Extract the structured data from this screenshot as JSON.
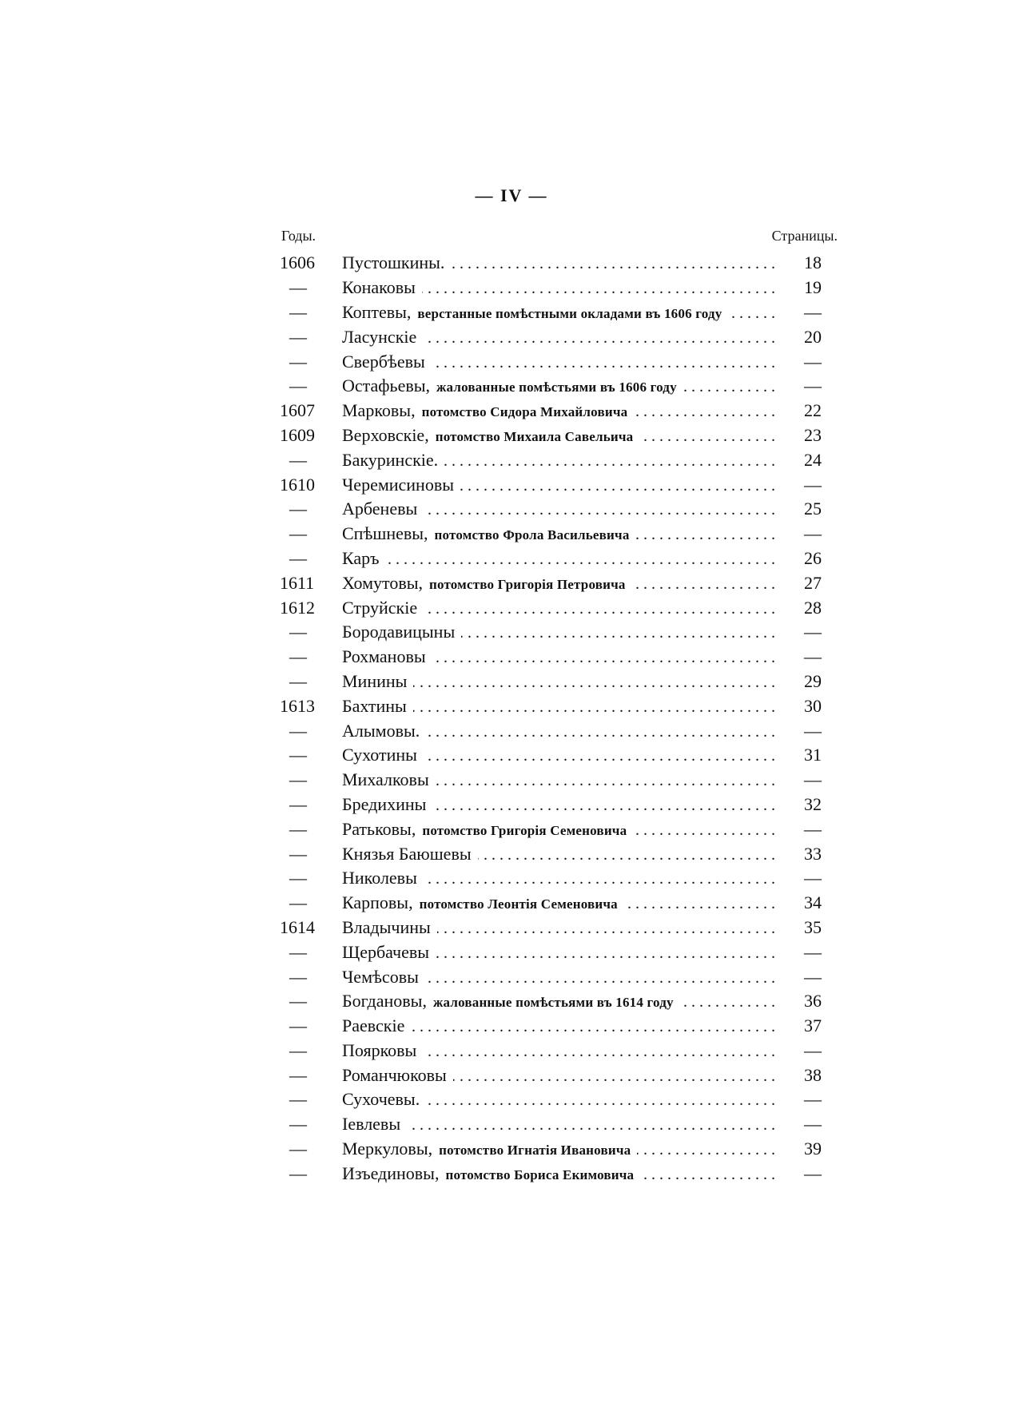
{
  "page_number": "— IV —",
  "headers": {
    "years": "Годы.",
    "pages": "Страницы."
  },
  "entries": [
    {
      "year": "1606",
      "name": "Пустошкины.",
      "desc": "",
      "page": "18"
    },
    {
      "year": "—",
      "name": "Конаковы",
      "desc": "",
      "page": "19"
    },
    {
      "year": "—",
      "name": "Коптевы,",
      "desc": "верстанные помѣстными окладами въ 1606 году",
      "page": "—"
    },
    {
      "year": "—",
      "name": "Ласунскіе",
      "desc": "",
      "page": "20"
    },
    {
      "year": "—",
      "name": "Свербѣевы",
      "desc": "",
      "page": "—"
    },
    {
      "year": "—",
      "name": "Остафьевы,",
      "desc": "жалованные помѣстьями въ 1606 году",
      "page": "—"
    },
    {
      "year": "1607",
      "name": "Марковы,",
      "desc": "потомство Сидора Михайловича",
      "page": "22"
    },
    {
      "year": "1609",
      "name": "Верховскіе,",
      "desc": "потомство Михаила Савельича",
      "page": "23"
    },
    {
      "year": "—",
      "name": "Бакуринскіе.",
      "desc": "",
      "page": "24"
    },
    {
      "year": "1610",
      "name": "Черемисиновы",
      "desc": "",
      "page": "—"
    },
    {
      "year": "—",
      "name": "Арбеневы",
      "desc": "",
      "page": "25"
    },
    {
      "year": "—",
      "name": "Спѣшневы,",
      "desc": "потомство Фрола Васильевича",
      "page": "—"
    },
    {
      "year": "—",
      "name": "Каръ",
      "desc": "",
      "page": "26"
    },
    {
      "year": "1611",
      "name": "Хомутовы,",
      "desc": "потомство Григорія Петровича",
      "page": "27"
    },
    {
      "year": "1612",
      "name": "Струйскіе",
      "desc": "",
      "page": "28"
    },
    {
      "year": "—",
      "name": "Бородавицыны",
      "desc": "",
      "page": "—"
    },
    {
      "year": "—",
      "name": "Рохмановы",
      "desc": "",
      "page": "—"
    },
    {
      "year": "—",
      "name": "Минины",
      "desc": "",
      "page": "29"
    },
    {
      "year": "1613",
      "name": "Бахтины",
      "desc": "",
      "page": "30"
    },
    {
      "year": "—",
      "name": "Алымовы.",
      "desc": "",
      "page": "—"
    },
    {
      "year": "—",
      "name": "Сухотины",
      "desc": "",
      "page": "31"
    },
    {
      "year": "—",
      "name": "Михалковы",
      "desc": "",
      "page": "—"
    },
    {
      "year": "—",
      "name": "Бредихины",
      "desc": "",
      "page": "32"
    },
    {
      "year": "—",
      "name": "Ратьковы,",
      "desc": "потомство Григорія Семеновича",
      "page": "—"
    },
    {
      "year": "—",
      "name": "Князья Баюшевы",
      "desc": "",
      "page": "33"
    },
    {
      "year": "—",
      "name": "Николевы",
      "desc": "",
      "page": "—"
    },
    {
      "year": "—",
      "name": "Карповы,",
      "desc": "потомство Леонтія Семеновича",
      "page": "34"
    },
    {
      "year": "1614",
      "name": "Владычины",
      "desc": "",
      "page": "35"
    },
    {
      "year": "—",
      "name": "Щербачевы",
      "desc": "",
      "page": "—"
    },
    {
      "year": "—",
      "name": "Чемѣсовы",
      "desc": "",
      "page": "—"
    },
    {
      "year": "—",
      "name": "Богдановы,",
      "desc": "жалованные помѣстьями въ 1614 году",
      "page": "36"
    },
    {
      "year": "—",
      "name": "Раевскіе",
      "desc": "",
      "page": "37"
    },
    {
      "year": "—",
      "name": "Поярковы",
      "desc": "",
      "page": "—"
    },
    {
      "year": "—",
      "name": "Романчюковы",
      "desc": "",
      "page": "38"
    },
    {
      "year": "—",
      "name": "Сухочевы.",
      "desc": "",
      "page": "—"
    },
    {
      "year": "—",
      "name": "Іевлевы",
      "desc": "",
      "page": "—"
    },
    {
      "year": "—",
      "name": "Меркуловы,",
      "desc": "потомство Игнатія Ивановича",
      "page": "39"
    },
    {
      "year": "—",
      "name": "Изъединовы,",
      "desc": "потомство Бориса Екимовича",
      "page": "—"
    }
  ]
}
